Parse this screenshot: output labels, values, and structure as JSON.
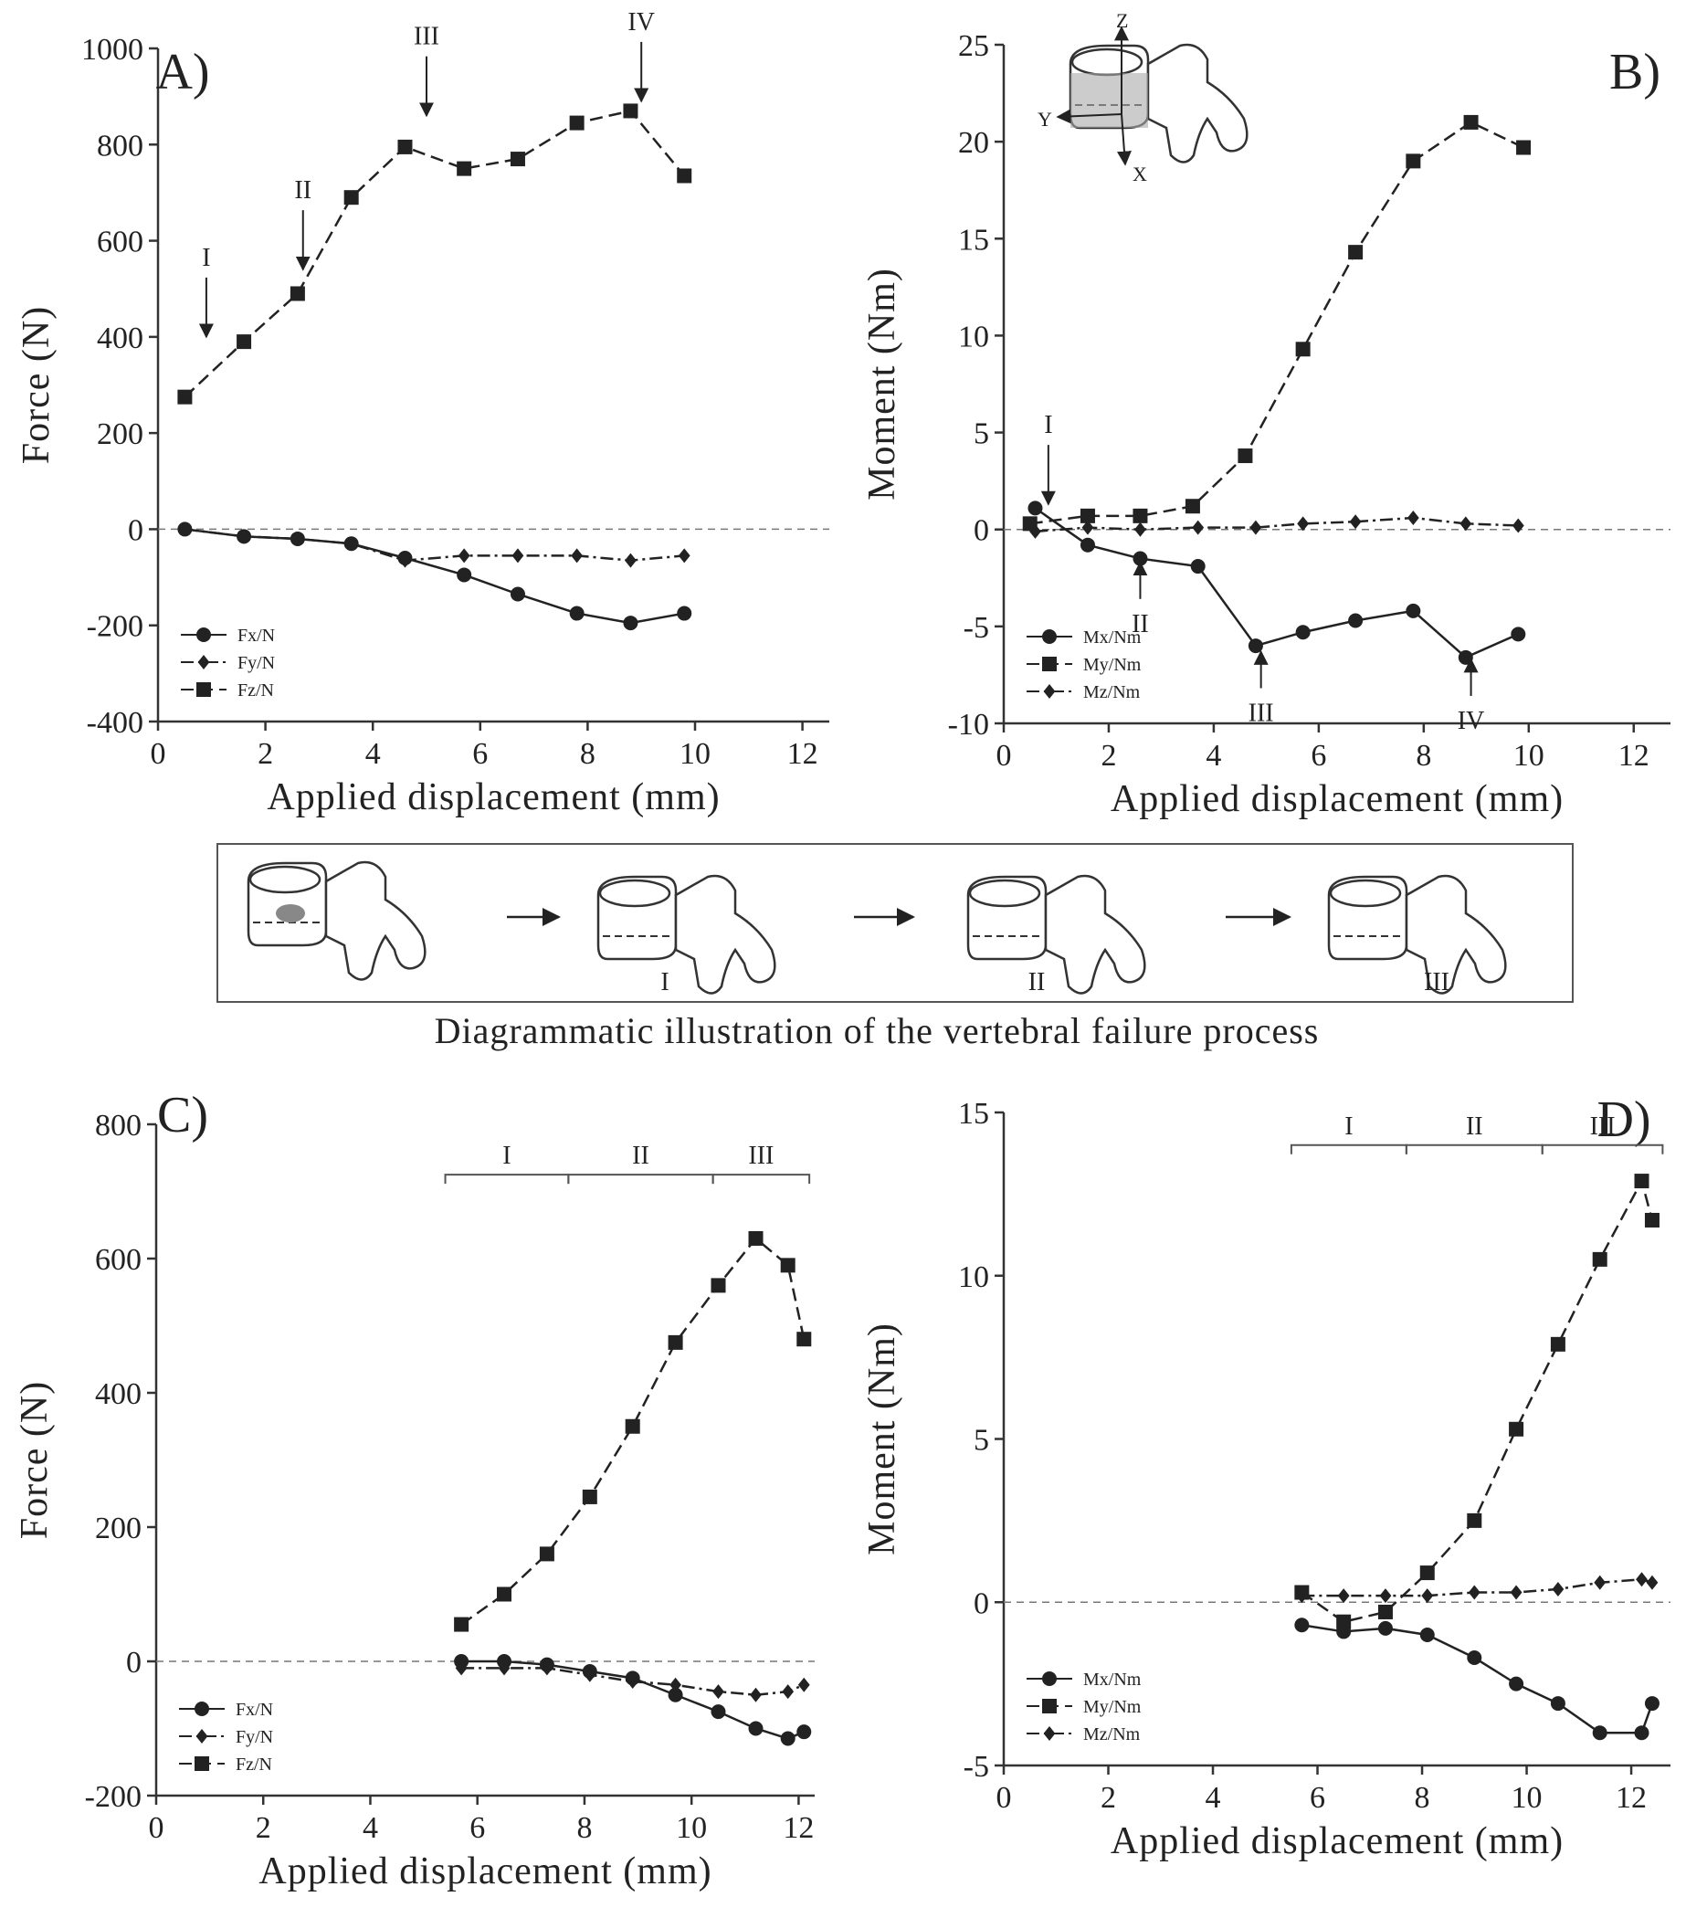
{
  "chart_data": [
    {
      "type": "line",
      "panel": "A)",
      "xlabel": "Applied displacement (mm)",
      "ylabel": "Force (N)",
      "xlim": [
        0,
        12.5
      ],
      "xticks": [
        0,
        2,
        4,
        6,
        8,
        10,
        12
      ],
      "ylim": [
        -400,
        1000
      ],
      "yticks": [
        -400,
        -200,
        0,
        200,
        400,
        600,
        800,
        1000
      ],
      "zero_line": true,
      "legend": "lower left",
      "series": [
        {
          "name": "Fx/N",
          "color": "#222222",
          "marker": "circle",
          "line_style": "solid",
          "x": [
            0.5,
            1.6,
            2.6,
            3.6,
            4.6,
            5.7,
            6.7,
            7.8,
            8.8,
            9.8
          ],
          "values": [
            0,
            -15,
            -20,
            -30,
            -60,
            -95,
            -135,
            -175,
            -195,
            -175
          ]
        },
        {
          "name": "Fy/N",
          "color": "#222222",
          "marker": "diamond",
          "line_style": "dashdot",
          "x": [
            0.5,
            1.6,
            2.6,
            3.6,
            4.6,
            5.7,
            6.7,
            7.8,
            8.8,
            9.8
          ],
          "values": [
            0,
            -15,
            -20,
            -30,
            -65,
            -55,
            -55,
            -55,
            -65,
            -55
          ]
        },
        {
          "name": "Fz/N",
          "color": "#222222",
          "marker": "square",
          "line_style": "dashed",
          "x": [
            0.5,
            1.6,
            2.6,
            3.6,
            4.6,
            5.7,
            6.7,
            7.8,
            8.8,
            9.8
          ],
          "values": [
            275,
            390,
            490,
            690,
            795,
            750,
            770,
            845,
            870,
            735
          ]
        }
      ],
      "annotations": [
        {
          "text": "I",
          "x": 0.9,
          "y": 400,
          "pointer": "down"
        },
        {
          "text": "II",
          "x": 2.7,
          "y": 540,
          "pointer": "down"
        },
        {
          "text": "III",
          "x": 5.0,
          "y": 860,
          "pointer": "down"
        },
        {
          "text": "IV",
          "x": 9.0,
          "y": 890,
          "pointer": "down"
        }
      ]
    },
    {
      "type": "line",
      "panel": "B)",
      "xlabel": "Applied displacement (mm)",
      "ylabel": "Moment (Nm)",
      "xlim": [
        0,
        12.7
      ],
      "xticks": [
        0,
        2,
        4,
        6,
        8,
        10,
        12
      ],
      "ylim": [
        -10,
        25
      ],
      "yticks": [
        -10,
        -5,
        0,
        5,
        10,
        15,
        20,
        25
      ],
      "zero_line": true,
      "legend": "lower left",
      "inset_labels": [
        "Z",
        "Y",
        "X"
      ],
      "series": [
        {
          "name": "Mx/Nm",
          "color": "#222222",
          "marker": "circle",
          "line_style": "solid",
          "x": [
            0.6,
            1.6,
            2.6,
            3.7,
            4.8,
            5.7,
            6.7,
            7.8,
            8.8,
            9.8
          ],
          "values": [
            1.1,
            -0.8,
            -1.5,
            -1.9,
            -6,
            -5.3,
            -4.7,
            -4.2,
            -6.6,
            -5.4
          ]
        },
        {
          "name": "My/Nm",
          "color": "#222222",
          "marker": "square",
          "line_style": "dashed",
          "x": [
            0.5,
            1.6,
            2.6,
            3.6,
            4.6,
            5.7,
            6.7,
            7.8,
            8.9,
            9.9
          ],
          "values": [
            0.3,
            0.7,
            0.7,
            1.2,
            3.8,
            9.3,
            14.3,
            19,
            21,
            19.7
          ]
        },
        {
          "name": "Mz/Nm",
          "color": "#222222",
          "marker": "diamond",
          "line_style": "dashdot",
          "x": [
            0.6,
            1.6,
            2.6,
            3.7,
            4.8,
            5.7,
            6.7,
            7.8,
            8.8,
            9.8
          ],
          "values": [
            -0.1,
            0.1,
            0,
            0.1,
            0.1,
            0.3,
            0.4,
            0.6,
            0.3,
            0.2
          ]
        }
      ],
      "annotations": [
        {
          "text": "I",
          "x": 0.85,
          "y": 1.3,
          "pointer": "down"
        },
        {
          "text": "II",
          "x": 2.6,
          "y": -1.7,
          "pointer": "up"
        },
        {
          "text": "III",
          "x": 4.9,
          "y": -6.3,
          "pointer": "up"
        },
        {
          "text": "IV",
          "x": 8.9,
          "y": -6.7,
          "pointer": "up"
        }
      ]
    },
    {
      "type": "line",
      "panel": "C)",
      "xlabel": "Applied displacement (mm)",
      "ylabel": "Force (N)",
      "xlim": [
        0,
        12.3
      ],
      "xticks": [
        0,
        2,
        4,
        6,
        8,
        10,
        12
      ],
      "ylim": [
        -200,
        800
      ],
      "yticks": [
        -200,
        0,
        200,
        400,
        600,
        800
      ],
      "zero_line": true,
      "legend": "lower left",
      "series": [
        {
          "name": "Fx/N",
          "color": "#222222",
          "marker": "circle",
          "line_style": "solid",
          "x": [
            5.7,
            6.5,
            7.3,
            8.1,
            8.9,
            9.7,
            10.5,
            11.2,
            11.8,
            12.1
          ],
          "values": [
            0,
            0,
            -5,
            -15,
            -25,
            -50,
            -75,
            -100,
            -115,
            -105
          ]
        },
        {
          "name": "Fy/N",
          "color": "#222222",
          "marker": "diamond",
          "line_style": "dashdot",
          "x": [
            5.7,
            6.5,
            7.3,
            8.1,
            8.9,
            9.7,
            10.5,
            11.2,
            11.8,
            12.1
          ],
          "values": [
            -10,
            -10,
            -10,
            -20,
            -30,
            -35,
            -45,
            -50,
            -45,
            -35
          ]
        },
        {
          "name": "Fz/N",
          "color": "#222222",
          "marker": "square",
          "line_style": "dashed",
          "x": [
            5.7,
            6.5,
            7.3,
            8.1,
            8.9,
            9.7,
            10.5,
            11.2,
            11.8,
            12.1
          ],
          "values": [
            55,
            100,
            160,
            245,
            350,
            475,
            560,
            630,
            590,
            480
          ]
        }
      ],
      "phase_y": 725,
      "phases": [
        {
          "label": "I",
          "start": 5.4,
          "end": 7.7
        },
        {
          "label": "II",
          "start": 7.7,
          "end": 10.4
        },
        {
          "label": "III",
          "start": 10.4,
          "end": 12.2
        }
      ]
    },
    {
      "type": "line",
      "panel": "D)",
      "xlabel": "Applied displacement (mm)",
      "ylabel": "Moment (Nm)",
      "xlim": [
        0,
        12.75
      ],
      "xticks": [
        0,
        2,
        4,
        6,
        8,
        10,
        12
      ],
      "ylim": [
        -5,
        15
      ],
      "yticks": [
        -5,
        0,
        5,
        10,
        15
      ],
      "zero_line": true,
      "legend": "lower left",
      "series": [
        {
          "name": "Mx/Nm",
          "color": "#222222",
          "marker": "circle",
          "line_style": "solid",
          "x": [
            5.7,
            6.5,
            7.3,
            8.1,
            9.0,
            9.8,
            10.6,
            11.4,
            12.2,
            12.4
          ],
          "values": [
            -0.7,
            -0.9,
            -0.8,
            -1,
            -1.7,
            -2.5,
            -3.1,
            -4,
            -4,
            -3.1
          ]
        },
        {
          "name": "My/Nm",
          "color": "#222222",
          "marker": "square",
          "line_style": "dashed",
          "x": [
            5.7,
            6.5,
            7.3,
            8.1,
            9.0,
            9.8,
            10.6,
            11.4,
            12.2,
            12.4
          ],
          "values": [
            0.3,
            -0.6,
            -0.3,
            0.9,
            2.5,
            5.3,
            7.9,
            10.5,
            12.9,
            11.7
          ]
        },
        {
          "name": "Mz/Nm",
          "color": "#222222",
          "marker": "diamond",
          "line_style": "dashdot",
          "x": [
            5.7,
            6.5,
            7.3,
            8.1,
            9.0,
            9.8,
            10.6,
            11.4,
            12.2,
            12.4
          ],
          "values": [
            0.2,
            0.2,
            0.2,
            0.2,
            0.3,
            0.3,
            0.4,
            0.6,
            0.7,
            0.6
          ]
        }
      ],
      "phase_y": 14,
      "phases": [
        {
          "label": "I",
          "start": 5.5,
          "end": 7.7
        },
        {
          "label": "II",
          "start": 7.7,
          "end": 10.3
        },
        {
          "label": "III",
          "start": 10.3,
          "end": 12.6
        }
      ]
    }
  ],
  "diagram": {
    "caption": "Diagrammatic illustration of the vertebral failure process",
    "stage_labels": [
      "I",
      "II",
      "III"
    ]
  }
}
